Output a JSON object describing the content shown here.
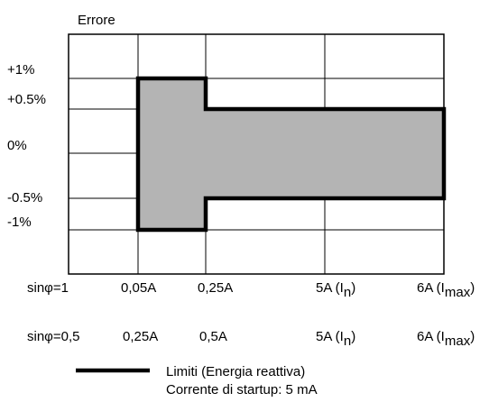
{
  "chart_data": {
    "type": "error-envelope",
    "ylabel": "Errore",
    "y_ticks": [
      "+1%",
      "+0.5%",
      "0%",
      "-0.5%",
      "-1%"
    ],
    "x_rows": [
      {
        "condition": "sinφ=1",
        "ticks": [
          {
            "main": "0,05A",
            "sub": "",
            "tail": ""
          },
          {
            "main": "0,25A",
            "sub": "",
            "tail": ""
          },
          {
            "main": "5A (I",
            "sub": "n",
            "tail": ")"
          },
          {
            "main": "6A (I",
            "sub": "max",
            "tail": ")"
          }
        ]
      },
      {
        "condition": "sinφ=0,5",
        "ticks": [
          {
            "main": "0,25A",
            "sub": "",
            "tail": ""
          },
          {
            "main": "0,5A",
            "sub": "",
            "tail": ""
          },
          {
            "main": "5A (I",
            "sub": "n",
            "tail": ")"
          },
          {
            "main": "6A (I",
            "sub": "max",
            "tail": ")"
          }
        ]
      }
    ],
    "envelope": [
      {
        "from_tick": 0,
        "to_tick": 1,
        "upper": "+1%",
        "lower": "-1%"
      },
      {
        "from_tick": 1,
        "to_tick": 3,
        "upper": "+0.5%",
        "lower": "-0.5%"
      }
    ],
    "legend": {
      "label": "Limiti (Energia reattiva)",
      "note": "Corrente di startup: 5 mA"
    },
    "colors": {
      "envelope_fill": "#b4b4b4",
      "envelope_stroke": "#000000",
      "grid": "#000000"
    }
  }
}
